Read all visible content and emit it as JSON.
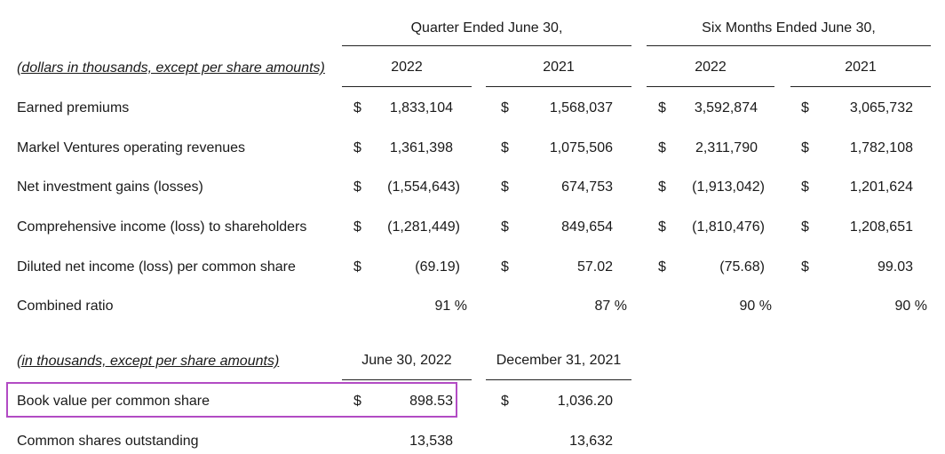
{
  "summary": {
    "group_headers": [
      "Quarter Ended June 30,",
      "Six Months Ended June 30,"
    ],
    "label_header": "(dollars in thousands, except per share amounts)",
    "years": [
      "2022",
      "2021",
      "2022",
      "2021"
    ],
    "rows": [
      {
        "label": "Earned premiums",
        "cells": [
          {
            "sym": "$",
            "val": "1,833,104"
          },
          {
            "sym": "$",
            "val": "1,568,037"
          },
          {
            "sym": "$",
            "val": "3,592,874"
          },
          {
            "sym": "$",
            "val": "3,065,732"
          }
        ]
      },
      {
        "label": "Markel Ventures operating revenues",
        "cells": [
          {
            "sym": "$",
            "val": "1,361,398"
          },
          {
            "sym": "$",
            "val": "1,075,506"
          },
          {
            "sym": "$",
            "val": "2,311,790"
          },
          {
            "sym": "$",
            "val": "1,782,108"
          }
        ]
      },
      {
        "label": "Net investment gains (losses)",
        "cells": [
          {
            "sym": "$",
            "val": "(1,554,643)"
          },
          {
            "sym": "$",
            "val": "674,753"
          },
          {
            "sym": "$",
            "val": "(1,913,042)"
          },
          {
            "sym": "$",
            "val": "1,201,624"
          }
        ]
      },
      {
        "label": "Comprehensive income (loss) to shareholders",
        "cells": [
          {
            "sym": "$",
            "val": "(1,281,449)"
          },
          {
            "sym": "$",
            "val": "849,654"
          },
          {
            "sym": "$",
            "val": "(1,810,476)"
          },
          {
            "sym": "$",
            "val": "1,208,651"
          }
        ]
      },
      {
        "label": "Diluted net income (loss) per common share",
        "cells": [
          {
            "sym": "$",
            "val": "(69.19)"
          },
          {
            "sym": "$",
            "val": "57.02"
          },
          {
            "sym": "$",
            "val": "(75.68)"
          },
          {
            "sym": "$",
            "val": "99.03"
          }
        ]
      },
      {
        "label": "Combined ratio",
        "cells": [
          {
            "sym": "",
            "val": "91 %"
          },
          {
            "sym": "",
            "val": "87 %"
          },
          {
            "sym": "",
            "val": "90 %"
          },
          {
            "sym": "",
            "val": "90 %"
          }
        ]
      }
    ]
  },
  "book": {
    "label_header": "(in thousands, except per share amounts)",
    "date_headers": [
      "June 30, 2022",
      "December 31, 2021"
    ],
    "rows": [
      {
        "label": "Book value per common share",
        "cells": [
          {
            "sym": "$",
            "val": "898.53"
          },
          {
            "sym": "$",
            "val": "1,036.20"
          }
        ],
        "highlighted": true
      },
      {
        "label": "Common shares outstanding",
        "cells": [
          {
            "sym": "",
            "val": "13,538"
          },
          {
            "sym": "",
            "val": "13,632"
          }
        ]
      }
    ]
  },
  "colors": {
    "highlight_border": "#b24bc4",
    "text": "#1a1a1a",
    "rule": "#222222"
  }
}
